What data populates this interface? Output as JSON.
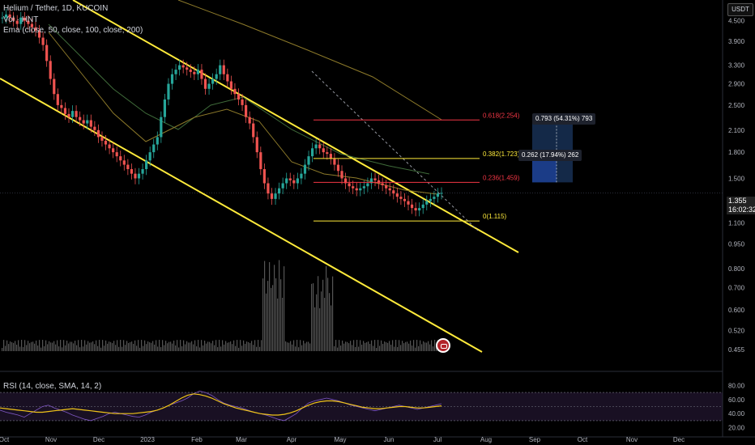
{
  "header": {
    "symbol_line": "Helium / Tether, 1D, KUCOIN",
    "vol_line": "Vol · HNT",
    "ema_line": "Ema (close, 50, close, 100, close, 200)",
    "currency": "USDT"
  },
  "price_badge": {
    "price": "1.355",
    "countdown": "16:02:32"
  },
  "rsi_legend": "RSI (14, close, SMA, 14, 2)",
  "fib_labels": [
    {
      "text": "0.618(2.254)",
      "color": "#f23645"
    },
    {
      "text": "0.382(1.723)",
      "color": "#ffeb3b"
    },
    {
      "text": "0.236(1.459)",
      "color": "#f23645"
    },
    {
      "text": "0(1.115)",
      "color": "#ffeb3b"
    }
  ],
  "measure_tips": [
    "0.793 (54.31%) 793",
    "0.262 (17.94%) 262"
  ],
  "chart_data": {
    "type": "candlestick",
    "symbol": "HNT/USDT",
    "exchange": "KUCOIN",
    "timeframe": "1D",
    "price_axis_ticks": [
      "4.500",
      "3.900",
      "3.300",
      "2.900",
      "2.500",
      "2.100",
      "1.800",
      "1.500",
      "1.355",
      "1.100",
      "0.950",
      "0.800",
      "0.700",
      "0.600",
      "0.520",
      "0.455"
    ],
    "price_scale": "log",
    "time_axis_ticks": [
      "Oct",
      "Nov",
      "Dec",
      "2023",
      "Feb",
      "Mar",
      "Apr",
      "May",
      "Jun",
      "Jul",
      "Aug",
      "Sep",
      "Oct",
      "Nov",
      "Dec"
    ],
    "rsi_axis_ticks": [
      "80.00",
      "60.00",
      "40.00",
      "20.00"
    ],
    "rsi_levels": [
      70,
      50,
      30
    ],
    "fib_levels": [
      {
        "ratio": 0.618,
        "price": 2.254
      },
      {
        "ratio": 0.382,
        "price": 1.723
      },
      {
        "ratio": 0.236,
        "price": 1.459
      },
      {
        "ratio": 0,
        "price": 1.115
      }
    ],
    "closes": [
      4.6,
      4.7,
      4.6,
      4.5,
      4.4,
      4.6,
      4.5,
      4.4,
      4.3,
      4.2,
      4.0,
      3.8,
      3.4,
      3.0,
      2.7,
      2.5,
      2.45,
      2.35,
      2.3,
      2.4,
      2.3,
      2.25,
      2.2,
      2.25,
      2.15,
      2.1,
      2.0,
      1.95,
      1.9,
      1.85,
      1.8,
      1.75,
      1.7,
      1.65,
      1.6,
      1.55,
      1.5,
      1.55,
      1.6,
      1.7,
      1.8,
      1.9,
      2.0,
      2.3,
      2.6,
      2.9,
      3.1,
      3.2,
      3.3,
      3.25,
      3.2,
      3.15,
      3.1,
      3.2,
      3.0,
      2.8,
      2.9,
      3.0,
      3.1,
      3.3,
      3.1,
      2.95,
      2.8,
      2.7,
      2.6,
      2.5,
      2.3,
      2.2,
      2.0,
      1.8,
      1.6,
      1.45,
      1.35,
      1.3,
      1.35,
      1.4,
      1.45,
      1.5,
      1.48,
      1.45,
      1.5,
      1.55,
      1.65,
      1.75,
      1.85,
      1.9,
      1.85,
      1.8,
      1.78,
      1.72,
      1.65,
      1.58,
      1.5,
      1.45,
      1.42,
      1.4,
      1.38,
      1.4,
      1.42,
      1.45,
      1.5,
      1.48,
      1.45,
      1.43,
      1.4,
      1.38,
      1.35,
      1.32,
      1.3,
      1.28,
      1.25,
      1.22,
      1.2,
      1.22,
      1.25,
      1.28,
      1.3,
      1.32,
      1.35,
      1.355
    ],
    "rsi": [
      45,
      42,
      40,
      38,
      35,
      40,
      45,
      50,
      52,
      48,
      45,
      42,
      38,
      35,
      32,
      30,
      33,
      36,
      40,
      42,
      40,
      38,
      36,
      35,
      38,
      42,
      45,
      48,
      52,
      55,
      58,
      62,
      68,
      72,
      70,
      66,
      60,
      55,
      52,
      50,
      48,
      45,
      42,
      40,
      38,
      35,
      32,
      30,
      35,
      40,
      48,
      55,
      58,
      60,
      62,
      60,
      58,
      55,
      52,
      50,
      48,
      46,
      44,
      46,
      48,
      50,
      52,
      50,
      48,
      46,
      48,
      50,
      52,
      54
    ],
    "rsi_sma": [
      48,
      47,
      46,
      45,
      44,
      43,
      42,
      42,
      43,
      44,
      45,
      46,
      47,
      46,
      45,
      44,
      43,
      42,
      41,
      40,
      40,
      40,
      40,
      41,
      42,
      43,
      45,
      48,
      52,
      57,
      62,
      66,
      68,
      67,
      65,
      62,
      58,
      54,
      51,
      48,
      46,
      44,
      42,
      40,
      39,
      38,
      38,
      39,
      41,
      44,
      48,
      52,
      55,
      57,
      58,
      58,
      57,
      55,
      53,
      51,
      49,
      48,
      47,
      47,
      48,
      49,
      50,
      50,
      49,
      48,
      48,
      49,
      50,
      51
    ]
  }
}
